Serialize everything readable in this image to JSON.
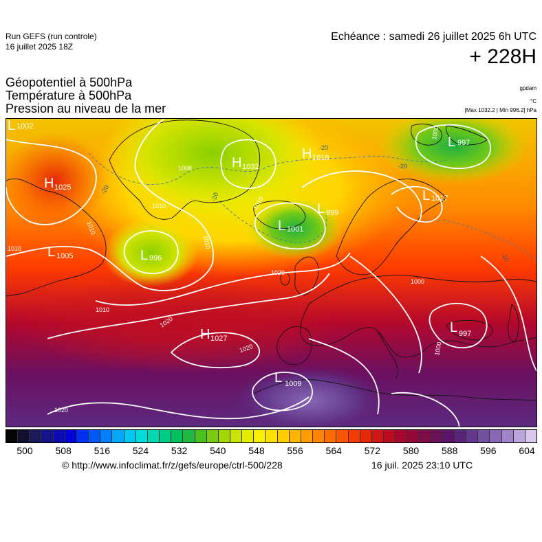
{
  "header": {
    "run_title": "Run GEFS (run controle)",
    "run_date": "16 juillet 2025 18Z",
    "valid_time": "Echéance : samedi 26 juillet 2025 6h UTC",
    "lead_time": "+ 228H"
  },
  "parameters": [
    "Géopotentiel à 500hPa",
    "Température à 500hPa",
    "Pression au niveau de la mer"
  ],
  "units": {
    "geopotential": "gpdam",
    "temperature": "°C",
    "pressure": "[Max 1032.2 | Min 996.2] hPa"
  },
  "map": {
    "highs": [
      {
        "letter": "H",
        "value": "1025"
      },
      {
        "letter": "H",
        "value": "1032"
      },
      {
        "letter": "H",
        "value": "1018"
      },
      {
        "letter": "H",
        "value": "1027"
      }
    ],
    "lows": [
      {
        "letter": "L",
        "value": "1002"
      },
      {
        "letter": "L",
        "value": "1005"
      },
      {
        "letter": "L",
        "value": "996"
      },
      {
        "letter": "L",
        "value": "1001"
      },
      {
        "letter": "L",
        "value": "999"
      },
      {
        "letter": "L",
        "value": "997"
      },
      {
        "letter": "L",
        "value": "1017"
      },
      {
        "letter": "L",
        "value": "997"
      },
      {
        "letter": "L",
        "value": "1009"
      }
    ],
    "isobar_labels": [
      "1008",
      "1010",
      "1010",
      "1010",
      "1010",
      "1010",
      "1020",
      "1020",
      "1020",
      "1020",
      "1010",
      "1000",
      "1000",
      "1000"
    ],
    "temperature_labels": [
      "-20",
      "-20",
      "-20",
      "-20",
      "-10"
    ]
  },
  "colorbar": {
    "colors": [
      "#050505",
      "#10102e",
      "#1a1a5a",
      "#141488",
      "#0b0bb3",
      "#0000d8",
      "#0030f0",
      "#0058f8",
      "#0080ff",
      "#00a8ff",
      "#00c8f0",
      "#00dcd8",
      "#00d8b0",
      "#00cc88",
      "#00c060",
      "#20b840",
      "#48c020",
      "#78cc10",
      "#a0d800",
      "#c8e400",
      "#e4ec00",
      "#f8f000",
      "#fce000",
      "#ffcc00",
      "#ffb400",
      "#ff9c00",
      "#ff8400",
      "#ff6c00",
      "#ff5400",
      "#f43c00",
      "#e42808",
      "#d01818",
      "#bc0c24",
      "#a8082e",
      "#940838",
      "#800c48",
      "#6c1058",
      "#5a1468",
      "#5a2478",
      "#64388c",
      "#7450a0",
      "#8868b4",
      "#a084c8",
      "#bca4dc",
      "#d8c8ec"
    ],
    "ticks": [
      "500",
      "508",
      "516",
      "524",
      "532",
      "540",
      "548",
      "556",
      "564",
      "572",
      "580",
      "588",
      "596",
      "604"
    ],
    "domain": [
      500,
      604
    ]
  },
  "footer": {
    "url": "© http://www.infoclimat.fr/z/gefs/europe/ctrl-500/228",
    "timestamp": "16 juil. 2025 23:10 UTC"
  }
}
